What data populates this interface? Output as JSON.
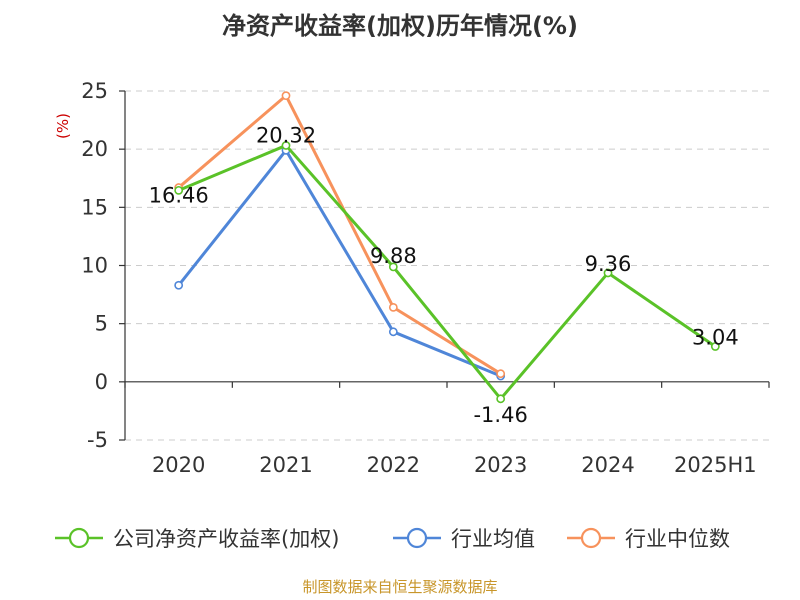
{
  "chart_data": {
    "type": "line",
    "title": "净资产收益率(加权)历年情况(%)",
    "ylabel": "(%)",
    "categories": [
      "2020",
      "2021",
      "2022",
      "2023",
      "2024",
      "2025H1"
    ],
    "ylim": [
      -5,
      25
    ],
    "yticks": [
      -5,
      0,
      5,
      10,
      15,
      20,
      25
    ],
    "grid": true,
    "legend_position": "bottom",
    "series": [
      {
        "name": "公司净资产收益率(加权)",
        "color": "#5ac228",
        "values": [
          16.46,
          20.32,
          9.88,
          -1.46,
          9.36,
          3.04
        ],
        "labels": [
          "16.46",
          "20.32",
          "9.88",
          "-1.46",
          "9.36",
          "3.04"
        ]
      },
      {
        "name": "行业均值",
        "color": "#4f86d8",
        "values": [
          8.3,
          19.9,
          4.3,
          0.5,
          null,
          null
        ]
      },
      {
        "name": "行业中位数",
        "color": "#f7925c",
        "values": [
          16.7,
          24.6,
          6.4,
          0.7,
          null,
          null
        ]
      }
    ]
  },
  "source": "制图数据来自恒生聚源数据库"
}
